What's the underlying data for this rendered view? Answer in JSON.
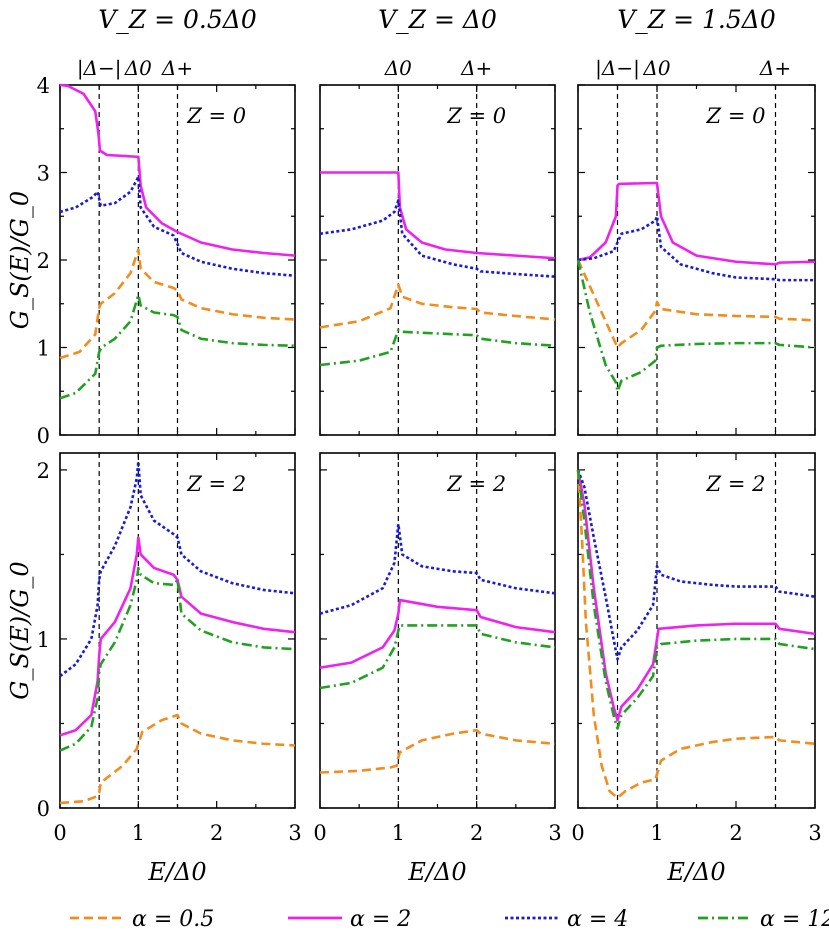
{
  "chart_data": {
    "type": "line",
    "ylabel": "G_S(E)/G_0",
    "xlabel": "E/Δ0",
    "columns": [
      {
        "title": "V_Z = 0.5Δ0",
        "refs": [
          {
            "x": 0.5,
            "label": "|Δ−|"
          },
          {
            "x": 1.0,
            "label": "Δ0"
          },
          {
            "x": 1.5,
            "label": "Δ+"
          }
        ]
      },
      {
        "title": "V_Z = Δ0",
        "refs": [
          {
            "x": 1.0,
            "label": "Δ0"
          },
          {
            "x": 2.0,
            "label": "Δ+"
          }
        ]
      },
      {
        "title": "V_Z = 1.5Δ0",
        "refs": [
          {
            "x": 0.5,
            "label": "|Δ−|"
          },
          {
            "x": 1.0,
            "label": "Δ0"
          },
          {
            "x": 2.5,
            "label": "Δ+"
          }
        ]
      }
    ],
    "rows": [
      {
        "zlabel": "Z = 0",
        "ylim": [
          0,
          4
        ],
        "yticks": [
          "0",
          "1",
          "2",
          "3",
          "4"
        ]
      },
      {
        "zlabel": "Z = 2",
        "ylim": [
          0,
          2.1
        ],
        "yticks": [
          "0",
          "1",
          "2"
        ]
      }
    ],
    "xlim": [
      0,
      3
    ],
    "xticks": [
      "0",
      "1",
      "2",
      "3"
    ],
    "series_styles": [
      {
        "name": "α = 0.5",
        "color": "#f28c1c",
        "dash": "9,5"
      },
      {
        "name": "α = 2",
        "color": "#ee22ee",
        "dash": ""
      },
      {
        "name": "α = 4",
        "color": "#1a1ad6",
        "dash": "3,2.5"
      },
      {
        "name": "α = 12",
        "color": "#22a022",
        "dash": "10,4,2,4"
      }
    ],
    "panels": [
      {
        "row": 0,
        "col": 0,
        "series": [
          {
            "x": [
              0,
              0.25,
              0.45,
              0.5,
              0.52,
              0.7,
              0.9,
              1.0,
              1.03,
              1.2,
              1.45,
              1.5,
              1.55,
              1.8,
              2.2,
              2.6,
              3.0
            ],
            "y": [
              0.88,
              0.95,
              1.15,
              1.45,
              1.5,
              1.62,
              1.85,
              2.12,
              1.9,
              1.75,
              1.68,
              1.65,
              1.55,
              1.45,
              1.38,
              1.34,
              1.32
            ]
          },
          {
            "x": [
              0,
              0.1,
              0.3,
              0.45,
              0.49,
              0.51,
              0.6,
              0.98,
              1.0,
              1.03,
              1.1,
              1.3,
              1.5,
              1.8,
              2.2,
              2.6,
              3.0
            ],
            "y": [
              4.0,
              3.99,
              3.9,
              3.7,
              3.45,
              3.25,
              3.2,
              3.18,
              3.18,
              2.85,
              2.6,
              2.42,
              2.32,
              2.2,
              2.12,
              2.08,
              2.05
            ]
          },
          {
            "x": [
              0,
              0.2,
              0.42,
              0.48,
              0.52,
              0.7,
              0.9,
              1.0,
              1.03,
              1.2,
              1.45,
              1.5,
              1.55,
              1.8,
              2.2,
              2.6,
              3.0
            ],
            "y": [
              2.55,
              2.6,
              2.72,
              2.78,
              2.62,
              2.65,
              2.78,
              2.95,
              2.6,
              2.38,
              2.28,
              2.18,
              2.08,
              1.98,
              1.9,
              1.85,
              1.82
            ]
          },
          {
            "x": [
              0,
              0.2,
              0.45,
              0.5,
              0.53,
              0.7,
              0.9,
              1.0,
              1.03,
              1.2,
              1.45,
              1.5,
              1.55,
              1.8,
              2.2,
              2.6,
              3.0
            ],
            "y": [
              0.42,
              0.48,
              0.7,
              0.95,
              1.0,
              1.1,
              1.3,
              1.6,
              1.48,
              1.4,
              1.37,
              1.35,
              1.2,
              1.1,
              1.05,
              1.03,
              1.02
            ]
          }
        ]
      },
      {
        "row": 0,
        "col": 1,
        "series": [
          {
            "x": [
              0,
              0.5,
              0.9,
              1.0,
              1.05,
              1.3,
              1.7,
              2.0,
              2.05,
              2.5,
              3.0
            ],
            "y": [
              1.23,
              1.3,
              1.45,
              1.72,
              1.58,
              1.5,
              1.46,
              1.44,
              1.4,
              1.36,
              1.32
            ]
          },
          {
            "x": [
              0,
              0.5,
              1.0,
              1.02,
              1.1,
              1.3,
              1.6,
              2.0,
              2.5,
              3.0
            ],
            "y": [
              3.0,
              3.0,
              3.0,
              2.6,
              2.35,
              2.2,
              2.12,
              2.08,
              2.05,
              2.02
            ]
          },
          {
            "x": [
              0,
              0.4,
              0.8,
              0.95,
              1.0,
              1.05,
              1.3,
              1.7,
              2.0,
              2.05,
              2.5,
              3.0
            ],
            "y": [
              2.3,
              2.35,
              2.45,
              2.55,
              2.68,
              2.3,
              2.05,
              1.95,
              1.9,
              1.87,
              1.84,
              1.81
            ]
          },
          {
            "x": [
              0,
              0.5,
              0.9,
              1.0,
              1.05,
              1.5,
              2.0,
              2.05,
              2.5,
              3.0
            ],
            "y": [
              0.8,
              0.85,
              0.95,
              1.2,
              1.18,
              1.16,
              1.14,
              1.1,
              1.05,
              1.02
            ]
          }
        ]
      },
      {
        "row": 0,
        "col": 2,
        "series": [
          {
            "x": [
              0,
              0.2,
              0.4,
              0.5,
              0.55,
              0.8,
              0.98,
              1.0,
              1.05,
              1.5,
              2.0,
              2.5,
              2.55,
              3.0
            ],
            "y": [
              2.0,
              1.6,
              1.2,
              1.0,
              1.05,
              1.2,
              1.42,
              1.52,
              1.44,
              1.38,
              1.36,
              1.35,
              1.33,
              1.31
            ]
          },
          {
            "x": [
              0,
              0.15,
              0.35,
              0.48,
              0.5,
              0.52,
              0.98,
              1.0,
              1.05,
              1.2,
              1.5,
              2.0,
              2.5,
              2.55,
              3.0
            ],
            "y": [
              2.0,
              2.03,
              2.2,
              2.5,
              2.85,
              2.87,
              2.88,
              2.88,
              2.5,
              2.2,
              2.05,
              1.98,
              1.95,
              1.97,
              1.98
            ]
          },
          {
            "x": [
              0,
              0.2,
              0.45,
              0.5,
              0.55,
              0.8,
              0.98,
              1.0,
              1.05,
              1.3,
              1.7,
              2.0,
              2.5,
              2.55,
              3.0
            ],
            "y": [
              2.0,
              2.02,
              2.1,
              2.2,
              2.3,
              2.35,
              2.45,
              2.5,
              2.15,
              1.95,
              1.85,
              1.8,
              1.78,
              1.77,
              1.77
            ]
          },
          {
            "x": [
              0,
              0.15,
              0.35,
              0.48,
              0.5,
              0.55,
              0.8,
              0.98,
              1.0,
              1.05,
              1.5,
              2.0,
              2.5,
              2.55,
              3.0
            ],
            "y": [
              2.0,
              1.4,
              0.8,
              0.6,
              0.5,
              0.62,
              0.72,
              0.85,
              1.0,
              1.02,
              1.04,
              1.05,
              1.05,
              1.03,
              1.0
            ]
          }
        ]
      },
      {
        "row": 1,
        "col": 0,
        "series": [
          {
            "x": [
              0,
              0.3,
              0.48,
              0.5,
              0.52,
              0.8,
              0.98,
              1.0,
              1.05,
              1.3,
              1.5,
              1.55,
              1.8,
              2.2,
              2.6,
              3.0
            ],
            "y": [
              0.03,
              0.04,
              0.07,
              0.09,
              0.15,
              0.25,
              0.35,
              0.38,
              0.45,
              0.52,
              0.55,
              0.5,
              0.44,
              0.4,
              0.38,
              0.37
            ]
          },
          {
            "x": [
              0,
              0.2,
              0.4,
              0.48,
              0.5,
              0.52,
              0.7,
              0.9,
              0.98,
              1.0,
              1.03,
              1.2,
              1.45,
              1.5,
              1.55,
              1.8,
              2.2,
              2.6,
              3.0
            ],
            "y": [
              0.43,
              0.46,
              0.55,
              0.75,
              0.9,
              1.0,
              1.1,
              1.3,
              1.5,
              1.6,
              1.5,
              1.42,
              1.38,
              1.35,
              1.25,
              1.15,
              1.1,
              1.06,
              1.04
            ]
          },
          {
            "x": [
              0,
              0.2,
              0.4,
              0.48,
              0.5,
              0.52,
              0.7,
              0.9,
              0.98,
              1.0,
              1.03,
              1.2,
              1.45,
              1.5,
              1.55,
              1.8,
              2.2,
              2.6,
              3.0
            ],
            "y": [
              0.78,
              0.85,
              1.0,
              1.2,
              1.35,
              1.4,
              1.55,
              1.78,
              1.95,
              2.05,
              1.85,
              1.7,
              1.62,
              1.6,
              1.5,
              1.4,
              1.33,
              1.29,
              1.27
            ]
          },
          {
            "x": [
              0,
              0.2,
              0.4,
              0.48,
              0.5,
              0.52,
              0.7,
              0.9,
              0.98,
              1.0,
              1.03,
              1.2,
              1.45,
              1.5,
              1.55,
              1.8,
              2.2,
              2.6,
              3.0
            ],
            "y": [
              0.34,
              0.38,
              0.48,
              0.65,
              0.8,
              0.85,
              0.98,
              1.2,
              1.35,
              1.42,
              1.38,
              1.33,
              1.32,
              1.35,
              1.15,
              1.05,
              0.98,
              0.95,
              0.94
            ]
          }
        ]
      },
      {
        "row": 1,
        "col": 1,
        "series": [
          {
            "x": [
              0,
              0.5,
              0.9,
              0.98,
              1.0,
              1.02,
              1.3,
              1.7,
              2.0,
              2.05,
              2.5,
              3.0
            ],
            "y": [
              0.21,
              0.22,
              0.24,
              0.25,
              0.3,
              0.33,
              0.4,
              0.44,
              0.46,
              0.44,
              0.4,
              0.38
            ]
          },
          {
            "x": [
              0,
              0.4,
              0.8,
              0.95,
              1.0,
              1.02,
              1.5,
              2.0,
              2.05,
              2.5,
              3.0
            ],
            "y": [
              0.83,
              0.86,
              0.95,
              1.05,
              1.15,
              1.23,
              1.19,
              1.17,
              1.13,
              1.07,
              1.04
            ]
          },
          {
            "x": [
              0,
              0.4,
              0.8,
              0.95,
              1.0,
              1.05,
              1.3,
              1.7,
              2.0,
              2.05,
              2.5,
              3.0
            ],
            "y": [
              1.15,
              1.2,
              1.3,
              1.45,
              1.68,
              1.5,
              1.43,
              1.4,
              1.39,
              1.35,
              1.3,
              1.27
            ]
          },
          {
            "x": [
              0,
              0.4,
              0.8,
              0.95,
              1.0,
              1.02,
              1.5,
              2.0,
              2.05,
              2.5,
              3.0
            ],
            "y": [
              0.71,
              0.74,
              0.83,
              0.95,
              1.05,
              1.08,
              1.08,
              1.08,
              1.03,
              0.98,
              0.95
            ]
          }
        ]
      },
      {
        "row": 1,
        "col": 2,
        "series": [
          {
            "x": [
              0,
              0.05,
              0.1,
              0.2,
              0.3,
              0.4,
              0.5,
              0.6,
              0.8,
              0.98,
              1.0,
              1.05,
              1.3,
              1.7,
              2.0,
              2.5,
              2.55,
              3.0
            ],
            "y": [
              2.0,
              1.6,
              1.1,
              0.55,
              0.25,
              0.1,
              0.06,
              0.1,
              0.15,
              0.17,
              0.2,
              0.28,
              0.35,
              0.39,
              0.41,
              0.42,
              0.4,
              0.38
            ]
          },
          {
            "x": [
              0,
              0.08,
              0.2,
              0.35,
              0.45,
              0.5,
              0.55,
              0.75,
              0.95,
              1.0,
              1.02,
              1.5,
              2.0,
              2.5,
              2.55,
              3.0
            ],
            "y": [
              2.0,
              1.8,
              1.3,
              0.8,
              0.6,
              0.52,
              0.6,
              0.7,
              0.85,
              1.0,
              1.06,
              1.08,
              1.09,
              1.09,
              1.06,
              1.03
            ]
          },
          {
            "x": [
              0,
              0.08,
              0.2,
              0.35,
              0.45,
              0.5,
              0.55,
              0.75,
              0.95,
              1.0,
              1.05,
              1.3,
              1.7,
              2.0,
              2.5,
              2.55,
              3.0
            ],
            "y": [
              2.0,
              1.9,
              1.6,
              1.25,
              1.0,
              0.88,
              0.95,
              1.05,
              1.2,
              1.43,
              1.38,
              1.34,
              1.32,
              1.31,
              1.31,
              1.28,
              1.25
            ]
          },
          {
            "x": [
              0,
              0.08,
              0.2,
              0.35,
              0.45,
              0.5,
              0.55,
              0.75,
              0.95,
              1.0,
              1.05,
              1.5,
              2.0,
              2.5,
              2.55,
              3.0
            ],
            "y": [
              2.0,
              1.7,
              1.2,
              0.75,
              0.55,
              0.47,
              0.55,
              0.65,
              0.78,
              0.95,
              0.97,
              0.99,
              1.0,
              1.0,
              0.97,
              0.94
            ]
          }
        ]
      }
    ]
  }
}
